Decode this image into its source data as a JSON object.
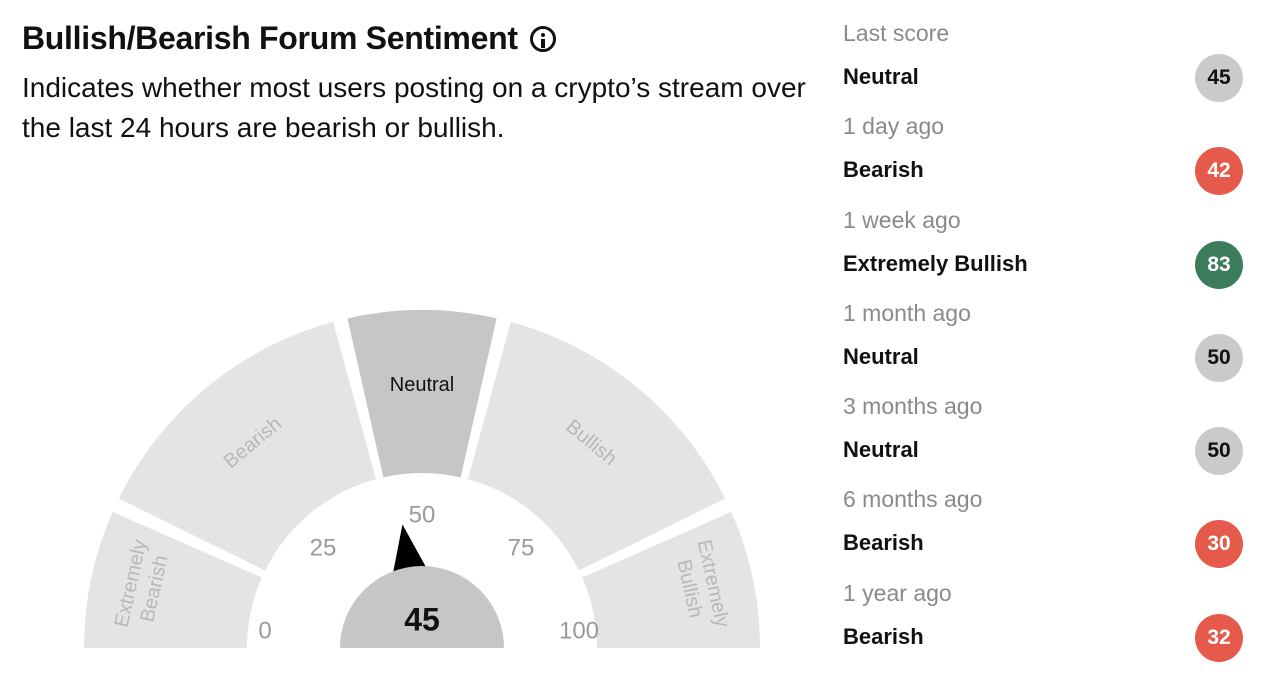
{
  "header": {
    "title": "Bullish/Bearish Forum Sentiment",
    "description": "Indicates whether most users posting on a crypto’s stream over the last 24 hours are bearish or bullish.",
    "info_icon": "info-circle-icon"
  },
  "gauge": {
    "segments": [
      {
        "label_lines": [
          "Extremely",
          "Bearish"
        ],
        "active": false
      },
      {
        "label_lines": [
          "Bearish"
        ],
        "active": false
      },
      {
        "label_lines": [
          "Neutral"
        ],
        "active": true
      },
      {
        "label_lines": [
          "Bullish"
        ],
        "active": false
      },
      {
        "label_lines": [
          "Extremely",
          "Bullish"
        ],
        "active": false
      }
    ],
    "ticks": [
      "0",
      "25",
      "50",
      "75",
      "100"
    ],
    "value": 45,
    "value_label": "45",
    "colors": {
      "segment": "#e4e4e6",
      "segment_active": "#c6c6c8",
      "label": "#b8b8ba",
      "label_active": "#111111",
      "tick": "#9a9a9a",
      "needle": "#000000",
      "hub": "#c6c6c8"
    }
  },
  "history": {
    "items": [
      {
        "when": "Last score",
        "label": "Neutral",
        "score": "45",
        "tone": "neutral"
      },
      {
        "when": "1 day ago",
        "label": "Bearish",
        "score": "42",
        "tone": "bearish"
      },
      {
        "when": "1 week ago",
        "label": "Extremely Bullish",
        "score": "83",
        "tone": "bullish"
      },
      {
        "when": "1 month ago",
        "label": "Neutral",
        "score": "50",
        "tone": "neutral"
      },
      {
        "when": "3 months ago",
        "label": "Neutral",
        "score": "50",
        "tone": "neutral"
      },
      {
        "when": "6 months ago",
        "label": "Bearish",
        "score": "30",
        "tone": "bearish"
      },
      {
        "when": "1 year ago",
        "label": "Bearish",
        "score": "32",
        "tone": "bearish"
      }
    ],
    "tone_colors": {
      "neutral": "#cacacc",
      "bearish": "#e55a4a",
      "bullish": "#3b7d5a"
    }
  }
}
